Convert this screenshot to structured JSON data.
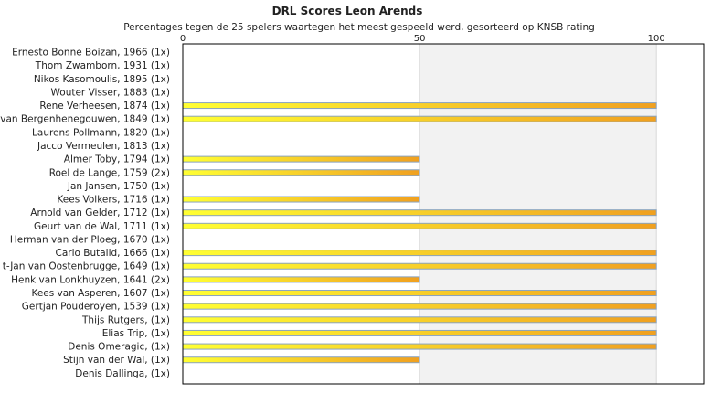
{
  "chart_data": {
    "type": "bar",
    "orientation": "horizontal",
    "title": "DRL Scores Leon Arends",
    "subtitle": "Percentages tegen de 25 spelers waartegen het meest gespeeld werd, gesorteerd op KNSB rating",
    "xlim": [
      0,
      110
    ],
    "xticks": [
      "0",
      "50",
      "100"
    ],
    "grid": true,
    "bar_color_start": "#ffff33",
    "bar_color_end": "#f0a020",
    "bar_edge_color": "#8aa4c0",
    "categories": [
      "Ernesto Bonne Boizan, 1966 (1x)",
      "Thom Zwamborn, 1931 (1x)",
      "Nikos Kasomoulis, 1895 (1x)",
      "Wouter Visser, 1883 (1x)",
      "Rene Verheesen, 1874 (1x)",
      "van Bergenhenegouwen, 1849 (1x)",
      "Laurens Pollmann, 1820 (1x)",
      "Jacco Vermeulen, 1813 (1x)",
      "Almer Toby, 1794 (1x)",
      "Roel de Lange, 1759 (2x)",
      "Jan Jansen, 1750 (1x)",
      "Kees Volkers, 1716 (1x)",
      "Arnold van Gelder, 1712 (1x)",
      "Geurt van de Wal, 1711 (1x)",
      "Herman van der Ploeg, 1670 (1x)",
      "Carlo Butalid, 1666 (1x)",
      "t-Jan van Oostenbrugge, 1649 (1x)",
      "Henk van Lonkhuyzen, 1641 (2x)",
      "Kees van Asperen, 1607 (1x)",
      "Gertjan Pouderoyen, 1539 (1x)",
      "Thijs Rutgers,  (1x)",
      "Elias Trip,  (1x)",
      "Denis Omeragic,  (1x)",
      "Stijn van der Wal,  (1x)",
      "Denis Dallinga,  (1x)"
    ],
    "values": [
      0,
      0,
      0,
      0,
      100,
      100,
      0,
      0,
      50,
      50,
      0,
      50,
      100,
      100,
      0,
      100,
      100,
      50,
      100,
      100,
      100,
      100,
      100,
      50,
      0
    ]
  }
}
